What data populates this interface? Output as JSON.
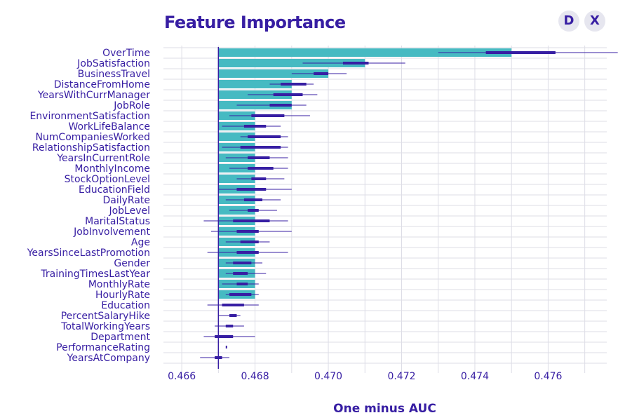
{
  "toolbar": {
    "d_label": "D",
    "x_label": "X"
  },
  "colors": {
    "bar": "#46bac2",
    "box": "#371ea3",
    "grid": "#dddde6",
    "text": "#371ea3"
  },
  "chart_data": {
    "type": "bar",
    "title": "Feature Importance",
    "xlabel": "One minus AUC",
    "xlim": [
      0.4655,
      0.4776
    ],
    "xticks": [
      0.466,
      0.468,
      0.47,
      0.472,
      0.474,
      0.476
    ],
    "xtick_labels": [
      "0.466",
      "0.468",
      "0.470",
      "0.472",
      "0.474",
      "0.476"
    ],
    "baseline": 0.467,
    "grid": true,
    "orientation": "horizontal",
    "features": [
      {
        "name": "OverTime",
        "value": 0.475,
        "min": 0.473,
        "q1": 0.4743,
        "median": 0.475,
        "q3": 0.4762,
        "max": 0.4779
      },
      {
        "name": "JobSatisfaction",
        "value": 0.471,
        "min": 0.4693,
        "q1": 0.4704,
        "median": 0.471,
        "q3": 0.4711,
        "max": 0.4721
      },
      {
        "name": "BusinessTravel",
        "value": 0.47,
        "min": 0.469,
        "q1": 0.4696,
        "median": 0.47,
        "q3": 0.47,
        "max": 0.4705
      },
      {
        "name": "DistanceFromHome",
        "value": 0.469,
        "min": 0.4684,
        "q1": 0.4687,
        "median": 0.469,
        "q3": 0.4694,
        "max": 0.4696
      },
      {
        "name": "YearsWithCurrManager",
        "value": 0.469,
        "min": 0.4678,
        "q1": 0.4685,
        "median": 0.4688,
        "q3": 0.4693,
        "max": 0.4697
      },
      {
        "name": "JobRole",
        "value": 0.469,
        "min": 0.4675,
        "q1": 0.4684,
        "median": 0.4689,
        "q3": 0.469,
        "max": 0.4694
      },
      {
        "name": "EnvironmentSatisfaction",
        "value": 0.468,
        "min": 0.4673,
        "q1": 0.4679,
        "median": 0.468,
        "q3": 0.4688,
        "max": 0.4695
      },
      {
        "name": "WorkLifeBalance",
        "value": 0.468,
        "min": 0.4671,
        "q1": 0.4677,
        "median": 0.468,
        "q3": 0.4683,
        "max": 0.4687
      },
      {
        "name": "NumCompaniesWorked",
        "value": 0.468,
        "min": 0.4676,
        "q1": 0.4678,
        "median": 0.468,
        "q3": 0.4687,
        "max": 0.4689
      },
      {
        "name": "RelationshipSatisfaction",
        "value": 0.468,
        "min": 0.4671,
        "q1": 0.4676,
        "median": 0.468,
        "q3": 0.4687,
        "max": 0.4689
      },
      {
        "name": "YearsInCurrentRole",
        "value": 0.468,
        "min": 0.4672,
        "q1": 0.4678,
        "median": 0.468,
        "q3": 0.4684,
        "max": 0.4689
      },
      {
        "name": "MonthlyIncome",
        "value": 0.468,
        "min": 0.4673,
        "q1": 0.4678,
        "median": 0.468,
        "q3": 0.4685,
        "max": 0.4689
      },
      {
        "name": "StockOptionLevel",
        "value": 0.468,
        "min": 0.4675,
        "q1": 0.4679,
        "median": 0.468,
        "q3": 0.4683,
        "max": 0.4688
      },
      {
        "name": "EducationField",
        "value": 0.468,
        "min": 0.467,
        "q1": 0.4675,
        "median": 0.4679,
        "q3": 0.4683,
        "max": 0.469
      },
      {
        "name": "DailyRate",
        "value": 0.468,
        "min": 0.4672,
        "q1": 0.4677,
        "median": 0.4679,
        "q3": 0.4682,
        "max": 0.4687
      },
      {
        "name": "JobLevel",
        "value": 0.468,
        "min": 0.4673,
        "q1": 0.4678,
        "median": 0.468,
        "q3": 0.4681,
        "max": 0.4686
      },
      {
        "name": "MaritalStatus",
        "value": 0.468,
        "min": 0.4666,
        "q1": 0.4674,
        "median": 0.468,
        "q3": 0.4684,
        "max": 0.4689
      },
      {
        "name": "JobInvolvement",
        "value": 0.468,
        "min": 0.4668,
        "q1": 0.4675,
        "median": 0.4679,
        "q3": 0.4681,
        "max": 0.469
      },
      {
        "name": "Age",
        "value": 0.468,
        "min": 0.4672,
        "q1": 0.4676,
        "median": 0.468,
        "q3": 0.4681,
        "max": 0.4684
      },
      {
        "name": "YearsSinceLastPromotion",
        "value": 0.468,
        "min": 0.4667,
        "q1": 0.4675,
        "median": 0.468,
        "q3": 0.4681,
        "max": 0.4689
      },
      {
        "name": "Gender",
        "value": 0.468,
        "min": 0.4672,
        "q1": 0.4674,
        "median": 0.4678,
        "q3": 0.4679,
        "max": 0.4682
      },
      {
        "name": "TrainingTimesLastYear",
        "value": 0.468,
        "min": 0.4672,
        "q1": 0.4674,
        "median": 0.4677,
        "q3": 0.4678,
        "max": 0.4683
      },
      {
        "name": "MonthlyRate",
        "value": 0.468,
        "min": 0.4671,
        "q1": 0.4675,
        "median": 0.4677,
        "q3": 0.4678,
        "max": 0.4681
      },
      {
        "name": "HourlyRate",
        "value": 0.468,
        "min": 0.4672,
        "q1": 0.4673,
        "median": 0.4677,
        "q3": 0.4679,
        "max": 0.4681
      },
      {
        "name": "Education",
        "value": 0.467,
        "min": 0.4667,
        "q1": 0.4671,
        "median": 0.4673,
        "q3": 0.4677,
        "max": 0.4681
      },
      {
        "name": "PercentSalaryHike",
        "value": 0.467,
        "min": 0.467,
        "q1": 0.4673,
        "median": 0.4674,
        "q3": 0.4675,
        "max": 0.4676
      },
      {
        "name": "TotalWorkingYears",
        "value": 0.467,
        "min": 0.4669,
        "q1": 0.4672,
        "median": 0.4673,
        "q3": 0.4674,
        "max": 0.4677
      },
      {
        "name": "Department",
        "value": 0.467,
        "min": 0.4666,
        "q1": 0.4669,
        "median": 0.4671,
        "q3": 0.4674,
        "max": 0.468
      },
      {
        "name": "PerformanceRating",
        "value": 0.467,
        "min": 0.4669,
        "q1": 0.4671,
        "median": 0.4672,
        "q3": 0.4673,
        "max": 0.4675
      },
      {
        "name": "YearsAtCompany",
        "value": 0.467,
        "min": 0.4672,
        "q1": 0.4672,
        "median": 0.4672,
        "q3": 0.4672,
        "max": 0.4672
      }
    ]
  }
}
